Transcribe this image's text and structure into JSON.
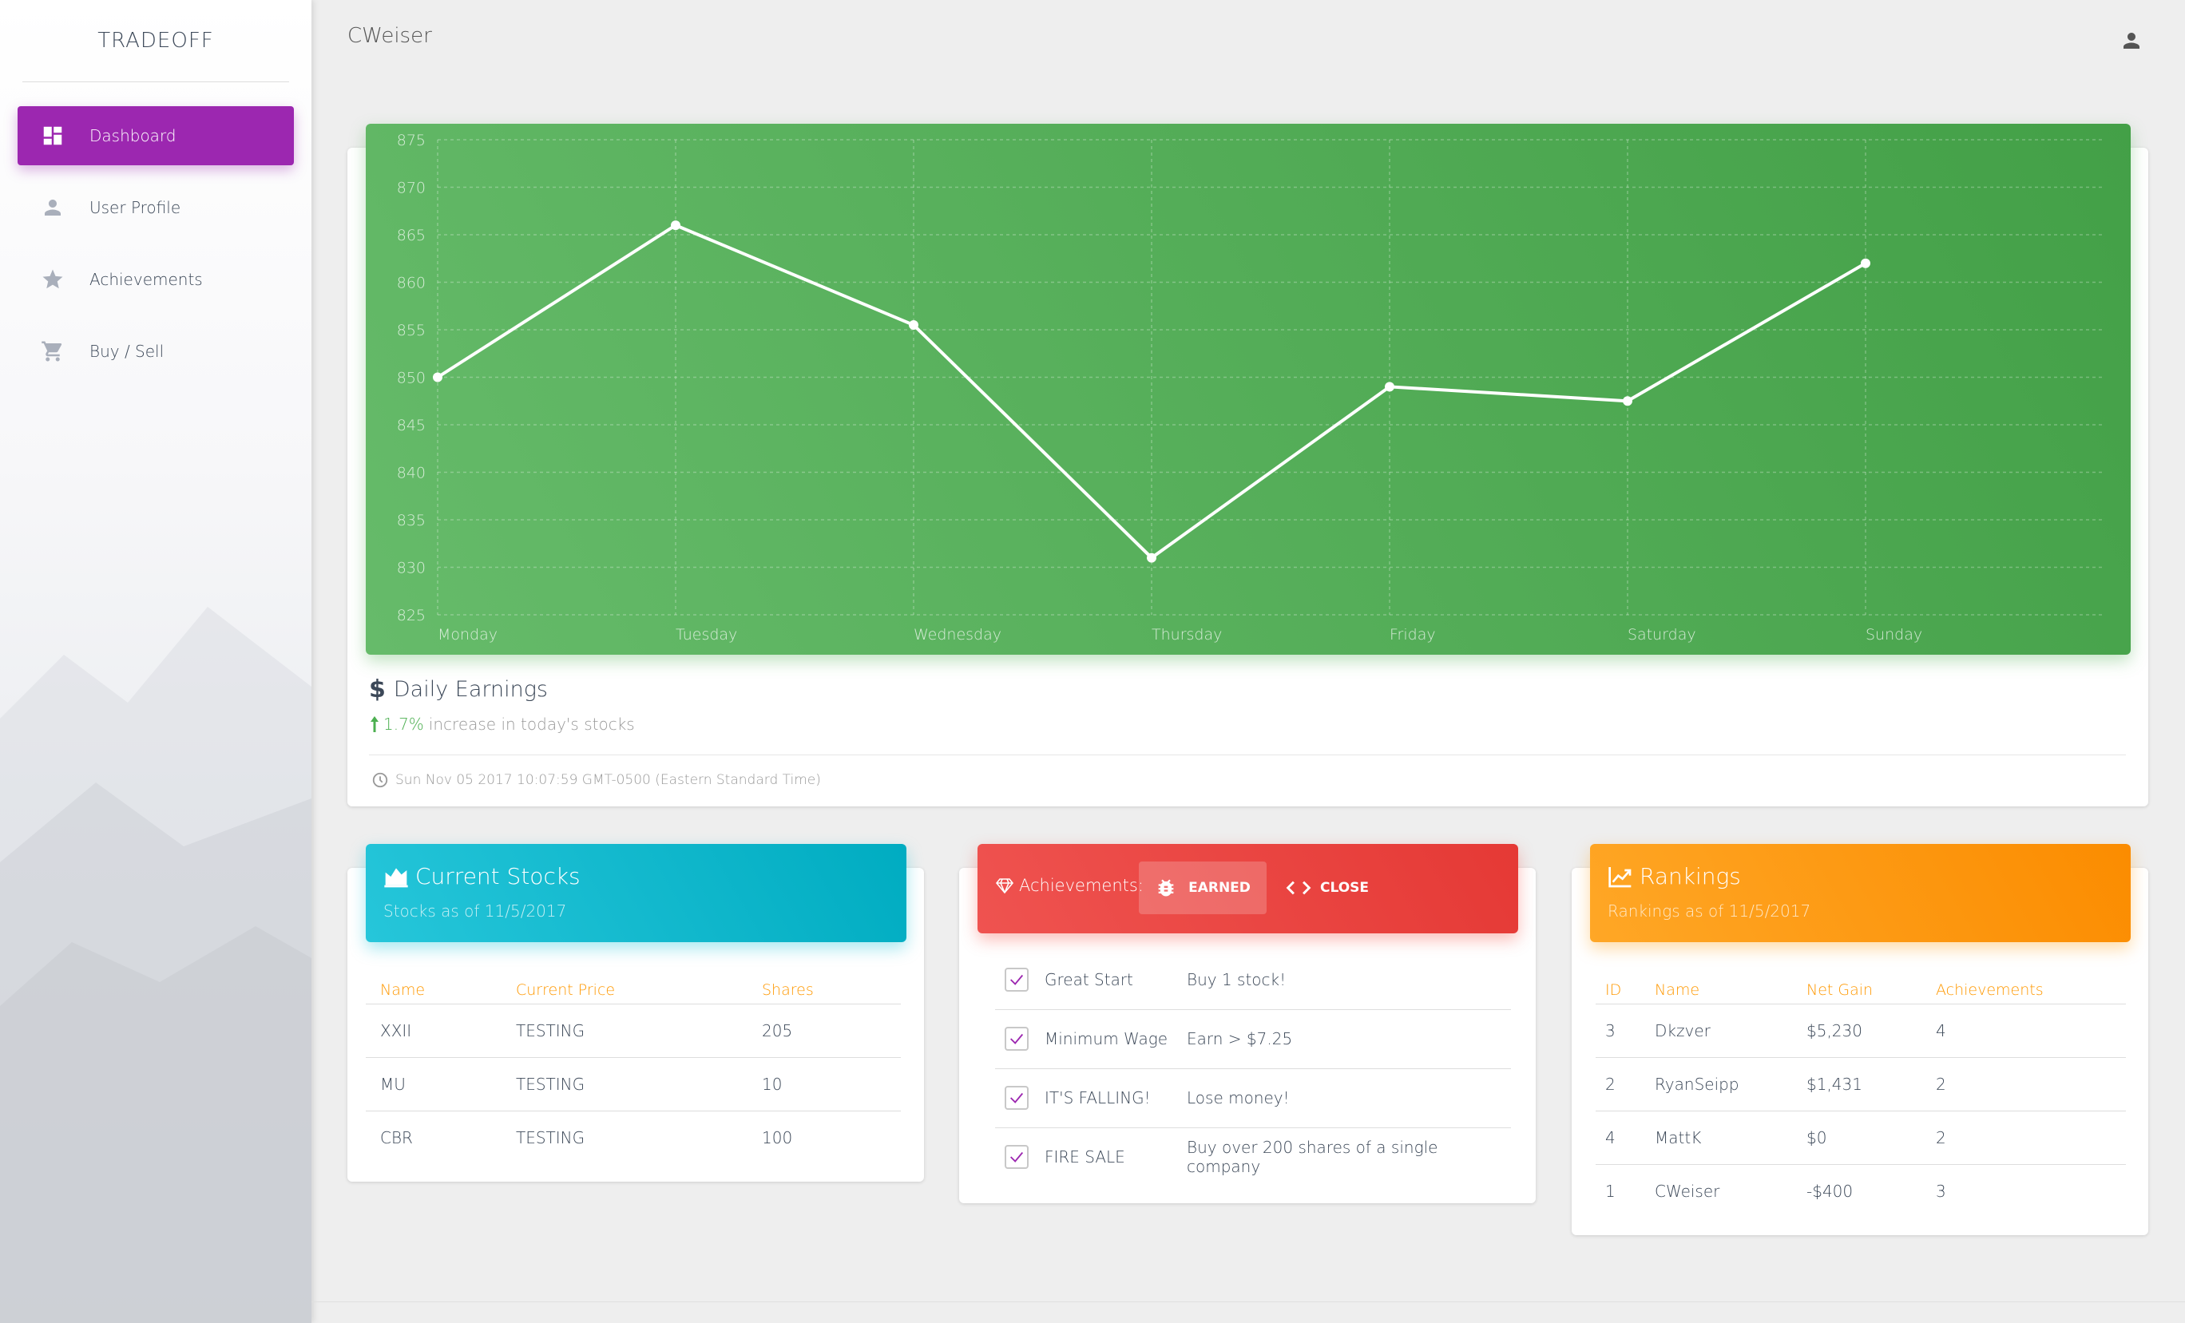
{
  "sidebar": {
    "brand": "TRADEOFF",
    "items": [
      {
        "label": "Dashboard",
        "icon": "dashboard-icon",
        "active": true
      },
      {
        "label": "User Profile",
        "icon": "person-icon",
        "active": false
      },
      {
        "label": "Achievements",
        "icon": "star-icon",
        "active": false
      },
      {
        "label": "Buy / Sell",
        "icon": "cart-icon",
        "active": false
      }
    ]
  },
  "topbar": {
    "title": "CWeiser",
    "user_icon": "account-icon"
  },
  "earnings": {
    "title": "Daily Earnings",
    "change_pct": "1.7%",
    "change_text": "increase in today's stocks",
    "timestamp": "Sun Nov 05 2017 10:07:59 GMT-0500 (Eastern Standard Time)"
  },
  "chart_data": {
    "type": "line",
    "categories": [
      "Monday",
      "Tuesday",
      "Wednesday",
      "Thursday",
      "Friday",
      "Saturday",
      "Sunday"
    ],
    "values": [
      850,
      866,
      855.5,
      831,
      849,
      847.5,
      862
    ],
    "yticks": [
      825,
      830,
      835,
      840,
      845,
      850,
      855,
      860,
      865,
      870,
      875
    ],
    "ylim": [
      825,
      875
    ],
    "grid": true,
    "line_color": "#ffffff"
  },
  "stocks": {
    "title": "Current Stocks",
    "subtitle": "Stocks as of 11/5/2017",
    "columns": [
      "Name",
      "Current Price",
      "Shares"
    ],
    "rows": [
      [
        "XXII",
        "TESTING",
        "205"
      ],
      [
        "MU",
        "TESTING",
        "10"
      ],
      [
        "CBR",
        "TESTING",
        "100"
      ]
    ]
  },
  "achievements": {
    "label": "Achievements:",
    "tab_earned": "EARNED",
    "tab_close": "CLOSE",
    "rows": [
      {
        "name": "Great Start",
        "desc": "Buy 1 stock!"
      },
      {
        "name": "Minimum Wage",
        "desc": "Earn > $7.25"
      },
      {
        "name": "IT'S FALLING!",
        "desc": "Lose money!"
      },
      {
        "name": "FIRE SALE",
        "desc": "Buy over 200 shares of a single company"
      }
    ]
  },
  "rankings": {
    "title": "Rankings",
    "subtitle": "Rankings as of 11/5/2017",
    "columns": [
      "ID",
      "Name",
      "Net Gain",
      "Achievements"
    ],
    "rows": [
      [
        "3",
        "Dkzver",
        "$5,230",
        "4"
      ],
      [
        "2",
        "RyanSeipp",
        "$1,431",
        "2"
      ],
      [
        "4",
        "MattK",
        "$0",
        "2"
      ],
      [
        "1",
        "CWeiser",
        "-$400",
        "3"
      ]
    ]
  },
  "colors": {
    "accent": "#9c27b0",
    "green": "#4caf50",
    "cyan": "#00bcd4",
    "red": "#f44336",
    "orange": "#ff9800"
  }
}
